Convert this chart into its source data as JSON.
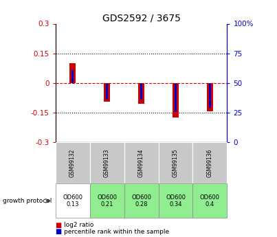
{
  "title": "GDS2592 / 3675",
  "samples": [
    "GSM99132",
    "GSM99133",
    "GSM99134",
    "GSM99135",
    "GSM99136"
  ],
  "growth_protocol_labels": [
    "OD600\n0.13",
    "OD600\n0.21",
    "OD600\n0.28",
    "OD600\n0.34",
    "OD600\n0.4"
  ],
  "growth_protocol_colors": [
    "#ffffff",
    "#90ee90",
    "#90ee90",
    "#90ee90",
    "#90ee90"
  ],
  "log2_ratio": [
    0.1,
    -0.095,
    -0.105,
    -0.175,
    -0.145
  ],
  "percentile_rank_scaled": [
    0.065,
    -0.085,
    -0.085,
    -0.148,
    -0.125
  ],
  "ylim": [
    -0.3,
    0.3
  ],
  "yticks_left": [
    -0.3,
    -0.15,
    0.0,
    0.15,
    0.3
  ],
  "yticks_right": [
    0,
    25,
    50,
    75,
    100
  ],
  "red_color": "#cc0000",
  "blue_color": "#0000cc",
  "left_axis_color": "#cc0000",
  "right_axis_color": "#0000cc",
  "zero_line_color": "#cc0000",
  "plot_bg_color": "#ffffff",
  "table_bg_color": "#c8c8c8",
  "growth_protocol_label": "growth protocol"
}
